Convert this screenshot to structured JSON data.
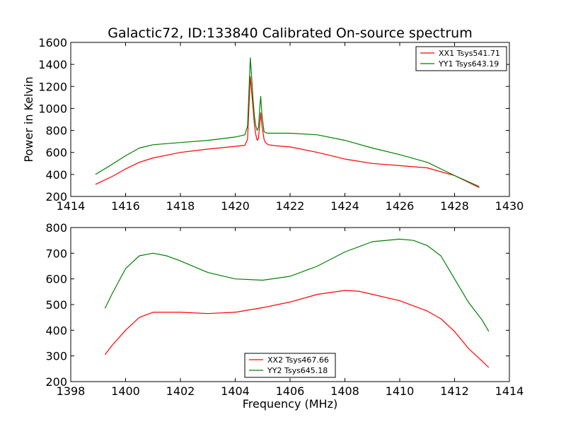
{
  "title": "Galactic72, ID:133840 Calibrated On-source spectrum",
  "xlabel": "Frequency (MHz)",
  "ylabel": "Power in Kelvin",
  "chart_data": [
    {
      "type": "line",
      "xlim": [
        1414,
        1430
      ],
      "ylim": [
        200,
        1600
      ],
      "xticks": [
        1414,
        1416,
        1418,
        1420,
        1422,
        1424,
        1426,
        1428,
        1430
      ],
      "yticks": [
        200,
        400,
        600,
        800,
        1000,
        1200,
        1400,
        1600
      ],
      "grid": false,
      "legend_position": "top-right",
      "series": [
        {
          "name": "XX1 Tsys541.71",
          "color": "#ff0000",
          "x": [
            1414.9,
            1415.5,
            1416.0,
            1416.5,
            1417.0,
            1418.0,
            1419.0,
            1420.0,
            1420.35,
            1420.45,
            1420.55,
            1420.6,
            1420.65,
            1420.7,
            1420.75,
            1420.8,
            1420.85,
            1420.9,
            1420.93,
            1420.97,
            1421.05,
            1421.1,
            1421.2,
            1421.5,
            1422.0,
            1423.0,
            1424.0,
            1425.0,
            1426.0,
            1427.0,
            1428.0,
            1428.9
          ],
          "y": [
            310,
            380,
            450,
            510,
            550,
            600,
            630,
            655,
            665,
            720,
            1290,
            1150,
            1000,
            850,
            760,
            710,
            730,
            880,
            960,
            850,
            720,
            690,
            670,
            660,
            650,
            600,
            540,
            500,
            480,
            460,
            390,
            280
          ]
        },
        {
          "name": "YY1 Tsys643.19",
          "color": "#008000",
          "x": [
            1414.9,
            1415.5,
            1416.0,
            1416.5,
            1417.0,
            1418.0,
            1419.0,
            1420.0,
            1420.35,
            1420.45,
            1420.55,
            1420.6,
            1420.65,
            1420.7,
            1420.75,
            1420.8,
            1420.85,
            1420.9,
            1420.93,
            1420.97,
            1421.05,
            1421.1,
            1421.2,
            1421.5,
            1422.0,
            1423.0,
            1424.0,
            1425.0,
            1426.0,
            1427.0,
            1428.0,
            1428.9
          ],
          "y": [
            400,
            490,
            570,
            640,
            670,
            690,
            710,
            740,
            760,
            840,
            1460,
            1280,
            1080,
            930,
            840,
            800,
            830,
            1030,
            1110,
            950,
            790,
            780,
            775,
            775,
            775,
            760,
            710,
            640,
            580,
            510,
            390,
            290
          ]
        }
      ]
    },
    {
      "type": "line",
      "xlim": [
        1398,
        1414
      ],
      "ylim": [
        200,
        800
      ],
      "xticks": [
        1398,
        1400,
        1402,
        1404,
        1406,
        1408,
        1410,
        1412,
        1414
      ],
      "yticks": [
        200,
        300,
        400,
        500,
        600,
        700,
        800
      ],
      "grid": false,
      "legend_position": "bottom-center",
      "series": [
        {
          "name": "XX2 Tsys467.66",
          "color": "#ff0000",
          "x": [
            1399.25,
            1399.5,
            1400.0,
            1400.5,
            1401.0,
            1402.0,
            1403.0,
            1404.0,
            1405.0,
            1406.0,
            1407.0,
            1408.0,
            1408.5,
            1409.0,
            1410.0,
            1411.0,
            1411.5,
            1412.0,
            1412.5,
            1413.0,
            1413.25
          ],
          "y": [
            305,
            340,
            400,
            450,
            470,
            470,
            465,
            470,
            488,
            510,
            540,
            555,
            552,
            540,
            515,
            475,
            445,
            395,
            330,
            280,
            255
          ]
        },
        {
          "name": "YY2 Tsys645.18",
          "color": "#008000",
          "x": [
            1399.25,
            1399.5,
            1400.0,
            1400.5,
            1401.0,
            1401.5,
            1402.0,
            1403.0,
            1404.0,
            1405.0,
            1406.0,
            1407.0,
            1408.0,
            1409.0,
            1410.0,
            1410.5,
            1411.0,
            1411.5,
            1412.0,
            1412.5,
            1413.0,
            1413.25
          ],
          "y": [
            485,
            540,
            640,
            690,
            700,
            690,
            670,
            625,
            600,
            595,
            610,
            650,
            705,
            745,
            755,
            750,
            730,
            690,
            600,
            510,
            440,
            395
          ]
        }
      ]
    }
  ]
}
